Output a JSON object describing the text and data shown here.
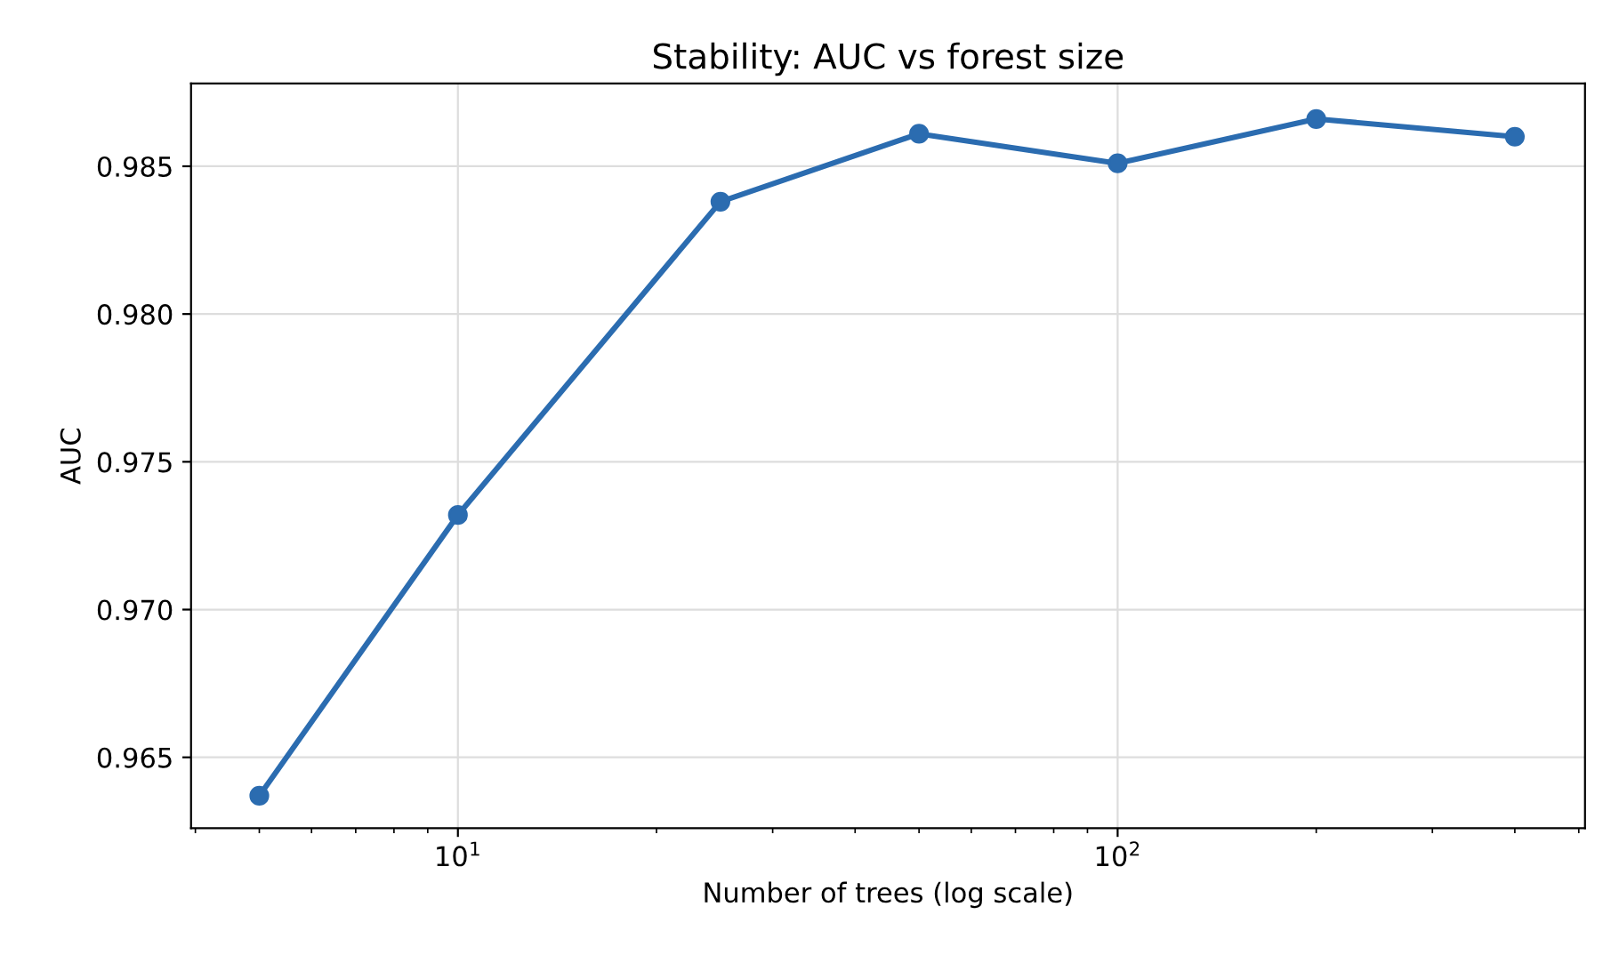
{
  "chart_data": {
    "type": "line",
    "title": "Stability: AUC vs forest size",
    "xlabel": "Number of trees (log scale)",
    "ylabel": "AUC",
    "x": [
      5,
      10,
      25,
      50,
      100,
      200,
      400
    ],
    "series": [
      {
        "color": "#2b6cb0",
        "values": [
          0.9637,
          0.9732,
          0.9838,
          0.9861,
          0.9851,
          0.9866,
          0.986
        ]
      }
    ],
    "log": "x",
    "xlim": [
      3.94,
      511
    ],
    "ylim": [
      0.9626,
      0.9878
    ],
    "xticks": [
      {
        "value": 4,
        "label": null
      },
      {
        "value": 5,
        "label": null
      },
      {
        "value": 6,
        "label": null
      },
      {
        "value": 7,
        "label": null
      },
      {
        "value": 8,
        "label": null
      },
      {
        "value": 9,
        "label": null
      },
      {
        "value": 10,
        "label": "10$^{1}$"
      },
      {
        "value": 20,
        "label": null
      },
      {
        "value": 30,
        "label": null
      },
      {
        "value": 40,
        "label": null
      },
      {
        "value": 50,
        "label": null
      },
      {
        "value": 60,
        "label": null
      },
      {
        "value": 70,
        "label": null
      },
      {
        "value": 80,
        "label": null
      },
      {
        "value": 90,
        "label": null
      },
      {
        "value": 100,
        "label": "10$^{2}$"
      },
      {
        "value": 200,
        "label": null
      },
      {
        "value": 300,
        "label": null
      },
      {
        "value": 400,
        "label": null
      },
      {
        "value": 500,
        "label": null
      }
    ],
    "yticks": [
      {
        "value": 0.965,
        "label": "0.965"
      },
      {
        "value": 0.97,
        "label": "0.970"
      },
      {
        "value": 0.975,
        "label": "0.975"
      },
      {
        "value": 0.98,
        "label": "0.980"
      },
      {
        "value": 0.985,
        "label": "0.985"
      }
    ],
    "grid": true,
    "marker": "circle",
    "line_style": "solid",
    "legend": false
  }
}
